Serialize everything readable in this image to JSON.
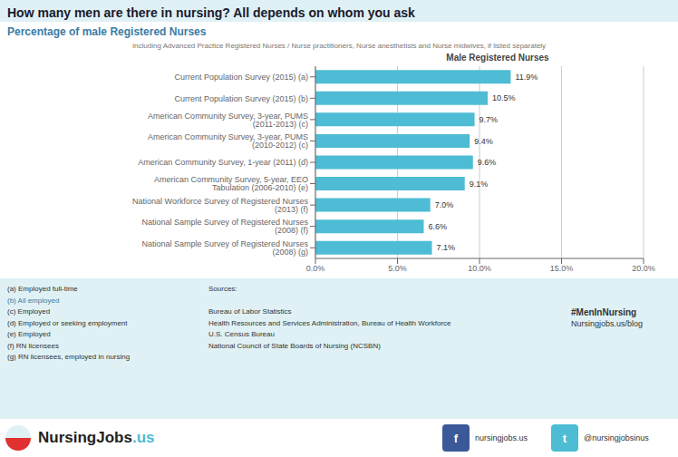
{
  "chart_data": {
    "type": "bar",
    "orientation": "horizontal",
    "title": "How many men are there in nursing? All depends on whom you ask",
    "subtitle": "Percentage of male Registered Nurses",
    "note": "Including Advanced Practice Registered Nurses / Nurse practitioners, Nurse anesthetists and Nurse midwives, if listed separately",
    "chart_title": "Male Registered Nurses",
    "categories": [
      "Current Population Survey (2015) (a)",
      "Current Population Survey (2015) (b)",
      "American Community Survey, 3-year, PUMS (2011-2013) (c)",
      "American Community Survey, 3-year, PUMS (2010-2012) (c)",
      "American Community Survey, 1-year (2011) (d)",
      "American Community Survey, 5-year, EEO Tabulation (2006-2010) (e)",
      "National Workforce Survey of Registered Nurses (2013) (f)",
      "National Sample Survey of Registered Nurses (2008) (f)",
      "National Sample Survey of Registered Nurses (2008) (g)"
    ],
    "values": [
      11.9,
      10.5,
      9.7,
      9.4,
      9.6,
      9.1,
      7.0,
      6.6,
      7.1
    ],
    "value_labels": [
      "11.9%",
      "10.5%",
      "9.7%",
      "9.4%",
      "9.6%",
      "9.1%",
      "7.0%",
      "6.6%",
      "7.1%"
    ],
    "data_labels": true,
    "color": "#4dbcd4",
    "xlim": [
      0,
      20
    ],
    "xticks": [
      {
        "value": 0,
        "label": "0.0%"
      },
      {
        "value": 5,
        "label": "5.0%"
      },
      {
        "value": 10,
        "label": "10.0%"
      },
      {
        "value": 15,
        "label": "15.0%"
      },
      {
        "value": 20,
        "label": "20.0%"
      }
    ],
    "grid": true,
    "footnotes": [
      "(a) Employed full-time",
      "(b) All employed",
      "(c) Employed",
      "(d) Employed or seeking employment",
      "(e) Employed",
      "(f) RN licensees",
      "(g) RN licensees, employed in nursing"
    ],
    "sources_label": "Sources:",
    "sources": [
      "Bureau of Labor Statistics",
      "Health Resources and Services Administration, Bureau of Health Workforce",
      "U.S. Census Bureau",
      "National Council of State Boards of Nursing (NCSBN)"
    ],
    "annotations": [
      "#MenInNursing",
      "Nursingjobs.us/blog",
      "NursingJobs",
      ".us",
      "f",
      "nursingjobs.us",
      "t",
      "@nursingjobsinus"
    ]
  }
}
